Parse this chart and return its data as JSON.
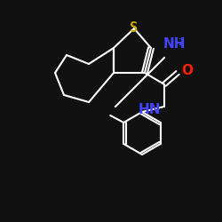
{
  "background_color": "#111111",
  "bond_color": "#ffffff",
  "S_color": "#ccaa00",
  "N_color": "#4444ff",
  "O_color": "#ff2200",
  "C_color": "#ffffff",
  "label_S": "S",
  "label_NH2": "NH",
  "label_NH2_sub": "2",
  "label_HN": "HN",
  "label_O": "O",
  "figsize": [
    2.5,
    2.5
  ],
  "dpi": 100
}
